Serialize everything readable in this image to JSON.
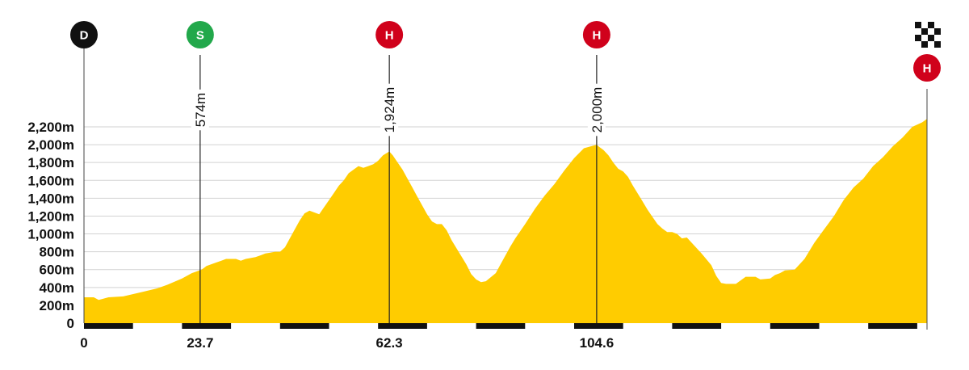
{
  "chart_data": {
    "type": "area",
    "title": "",
    "xlabel": "",
    "ylabel": "",
    "xlim": [
      0,
      172
    ],
    "ylim": [
      0,
      2200
    ],
    "y_ticks": [
      {
        "v": 0,
        "label": "0"
      },
      {
        "v": 200,
        "label": "200m"
      },
      {
        "v": 400,
        "label": "400m"
      },
      {
        "v": 600,
        "label": "600m"
      },
      {
        "v": 800,
        "label": "800m"
      },
      {
        "v": 1000,
        "label": "1,000m"
      },
      {
        "v": 1200,
        "label": "1,200m"
      },
      {
        "v": 1400,
        "label": "1,400m"
      },
      {
        "v": 1600,
        "label": "1,600m"
      },
      {
        "v": 1800,
        "label": "1,800m"
      },
      {
        "v": 2000,
        "label": "2,000m"
      },
      {
        "v": 2200,
        "label": "2,200m"
      }
    ],
    "x_ticks": [
      {
        "v": 0,
        "label": "0"
      },
      {
        "v": 23.7,
        "label": "23.7"
      },
      {
        "v": 62.3,
        "label": "62.3"
      },
      {
        "v": 104.6,
        "label": "104.6"
      }
    ],
    "grid": true,
    "fill_color": "#FFCC00",
    "series": [
      {
        "x": [
          0,
          2,
          3,
          5,
          8,
          12,
          15,
          17,
          20,
          22,
          24,
          25,
          27,
          28,
          29,
          31,
          32,
          33,
          34,
          35,
          36,
          37,
          38,
          39,
          40,
          41,
          42,
          43,
          44,
          45,
          46,
          47,
          48,
          49,
          50,
          51,
          52,
          53,
          54,
          55,
          55.5,
          56,
          57,
          58,
          59,
          60,
          61,
          62.3,
          63,
          64,
          65,
          66,
          67,
          68,
          69,
          70,
          71,
          72,
          73,
          74,
          75,
          76,
          77,
          78,
          79,
          80,
          81,
          82,
          84,
          85,
          87,
          88,
          90,
          92,
          94,
          96,
          98,
          100,
          102,
          104.6,
          105,
          106,
          107,
          108,
          109,
          110,
          111,
          112,
          113,
          114,
          115,
          116,
          117,
          118,
          119,
          120,
          121,
          122,
          123,
          124,
          126,
          128,
          129,
          130,
          131,
          132,
          133,
          135,
          137,
          138,
          140,
          141,
          142,
          143,
          145,
          147,
          149,
          151,
          153,
          155,
          157,
          159,
          161,
          163,
          165,
          167,
          169,
          171,
          172
        ],
        "y": [
          290,
          290,
          260,
          290,
          300,
          350,
          390,
          430,
          500,
          560,
          600,
          640,
          680,
          700,
          720,
          720,
          700,
          720,
          730,
          740,
          760,
          780,
          790,
          800,
          800,
          850,
          950,
          1050,
          1150,
          1230,
          1260,
          1240,
          1220,
          1300,
          1380,
          1460,
          1540,
          1600,
          1680,
          1720,
          1740,
          1760,
          1740,
          1760,
          1780,
          1820,
          1880,
          1924,
          1880,
          1800,
          1720,
          1620,
          1520,
          1420,
          1320,
          1220,
          1140,
          1110,
          1110,
          1040,
          930,
          840,
          750,
          660,
          550,
          490,
          460,
          470,
          560,
          660,
          860,
          950,
          1110,
          1280,
          1430,
          1560,
          1710,
          1850,
          1960,
          2000,
          1980,
          1940,
          1880,
          1800,
          1730,
          1700,
          1640,
          1540,
          1450,
          1360,
          1270,
          1190,
          1110,
          1060,
          1020,
          1020,
          1000,
          950,
          960,
          900,
          780,
          650,
          530,
          450,
          440,
          440,
          440,
          520,
          520,
          490,
          500,
          540,
          560,
          590,
          600,
          720,
          900,
          1050,
          1200,
          1380,
          1520,
          1620,
          1760,
          1860,
          1980,
          2080,
          2200,
          2250,
          2290
        ]
      }
    ],
    "summits": [
      {
        "marker": "S",
        "color": "#22A84B",
        "x": 23.7,
        "label": "574m"
      },
      {
        "marker": "H",
        "color": "#D0011B",
        "x": 62.3,
        "label": "1,924m"
      },
      {
        "marker": "H",
        "color": "#D0011B",
        "x": 104.6,
        "label": "2,000m"
      }
    ],
    "start_marker": {
      "marker": "D",
      "color": "#111111"
    },
    "finish_marker": {
      "marker": "H",
      "color": "#D0011B",
      "flag": "finish-flag"
    }
  }
}
